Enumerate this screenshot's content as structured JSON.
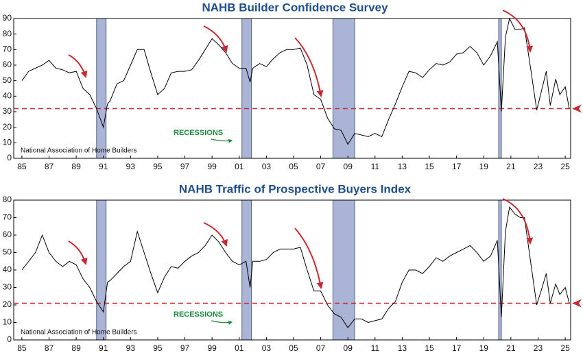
{
  "chart_data": [
    {
      "type": "line",
      "title": "NAHB Builder Confidence Survey",
      "source": "National Association of Home Builders",
      "annotation": "RECESSIONS",
      "color": "#000000",
      "reference_line": 32,
      "reference_color": "#c8282e",
      "recession_color": "#a9b4d6",
      "recessions": [
        [
          1990.5,
          1991.2
        ],
        [
          2001.2,
          2001.9
        ],
        [
          2007.9,
          2009.5
        ],
        [
          2020.1,
          2020.3
        ]
      ],
      "xlim": [
        1984.4,
        2025.4
      ],
      "ylim": [
        0,
        90
      ],
      "yticks": [
        0,
        10,
        20,
        30,
        40,
        50,
        60,
        70,
        80,
        90
      ],
      "xticks": [
        {
          "value": 1985,
          "label": "85"
        },
        {
          "value": 1987,
          "label": "87"
        },
        {
          "value": 1989,
          "label": "89"
        },
        {
          "value": 1991,
          "label": "91"
        },
        {
          "value": 1993,
          "label": "93"
        },
        {
          "value": 1995,
          "label": "95"
        },
        {
          "value": 1997,
          "label": "97"
        },
        {
          "value": 1999,
          "label": "99"
        },
        {
          "value": 2001,
          "label": "01"
        },
        {
          "value": 2003,
          "label": "03"
        },
        {
          "value": 2005,
          "label": "05"
        },
        {
          "value": 2007,
          "label": "07"
        },
        {
          "value": 2009,
          "label": "09"
        },
        {
          "value": 2011,
          "label": "11"
        },
        {
          "value": 2013,
          "label": "13"
        },
        {
          "value": 2015,
          "label": "15"
        },
        {
          "value": 2017,
          "label": "17"
        },
        {
          "value": 2019,
          "label": "19"
        },
        {
          "value": 2021,
          "label": "21"
        },
        {
          "value": 2023,
          "label": "23"
        },
        {
          "value": 2025,
          "label": "25"
        }
      ],
      "x": [
        1985,
        1985.5,
        1986,
        1986.5,
        1987,
        1987.5,
        1988,
        1988.5,
        1989,
        1989.5,
        1990,
        1990.5,
        1991,
        1991.3,
        1991.5,
        1992,
        1992.5,
        1993,
        1993.5,
        1994,
        1994.5,
        1995,
        1995.5,
        1996,
        1996.5,
        1997,
        1997.5,
        1998,
        1998.5,
        1999,
        1999.5,
        2000,
        2000.5,
        2001,
        2001.5,
        2001.8,
        2002,
        2002.5,
        2003,
        2003.5,
        2004,
        2004.5,
        2005,
        2005.5,
        2006,
        2006.5,
        2007,
        2007.5,
        2008,
        2008.5,
        2009,
        2009.5,
        2010,
        2010.5,
        2011,
        2011.5,
        2012,
        2012.5,
        2013,
        2013.5,
        2014,
        2014.5,
        2015,
        2015.5,
        2016,
        2016.5,
        2017,
        2017.5,
        2018,
        2018.5,
        2019,
        2019.5,
        2020,
        2020.3,
        2020.6,
        2020.9,
        2021.3,
        2021.7,
        2022,
        2022.5,
        2022.9,
        2023.3,
        2023.6,
        2023.9,
        2024.3,
        2024.6,
        2025,
        2025.3
      ],
      "values": [
        50,
        56,
        58,
        60,
        63,
        58,
        57,
        55,
        56,
        45,
        41,
        32,
        20,
        35,
        37,
        48,
        50,
        60,
        70,
        70,
        55,
        41,
        45,
        55,
        56,
        56,
        57,
        63,
        70,
        77,
        73,
        68,
        61,
        58,
        58,
        49,
        58,
        61,
        59,
        64,
        68,
        70,
        70,
        71,
        60,
        41,
        38,
        26,
        19,
        18,
        9,
        16,
        15,
        14,
        16,
        14,
        25,
        35,
        46,
        56,
        55,
        52,
        57,
        61,
        60,
        62,
        67,
        68,
        72,
        68,
        60,
        66,
        75,
        30,
        78,
        90,
        83,
        83,
        84,
        55,
        31,
        45,
        56,
        34,
        51,
        41,
        46,
        32
      ]
    },
    {
      "type": "line",
      "title": "NAHB Traffic of Prospective Buyers Index",
      "source": "National Association of Home Builders",
      "annotation": "RECESSIONS",
      "color": "#000000",
      "reference_line": 21,
      "reference_color": "#c8282e",
      "recession_color": "#a9b4d6",
      "recessions": [
        [
          1990.5,
          1991.2
        ],
        [
          2001.2,
          2001.9
        ],
        [
          2007.9,
          2009.5
        ],
        [
          2020.1,
          2020.3
        ]
      ],
      "xlim": [
        1984.4,
        2025.4
      ],
      "ylim": [
        0,
        80
      ],
      "yticks": [
        0,
        10,
        20,
        30,
        40,
        50,
        60,
        70,
        80
      ],
      "xticks": [
        {
          "value": 1985,
          "label": "85"
        },
        {
          "value": 1987,
          "label": "87"
        },
        {
          "value": 1989,
          "label": "89"
        },
        {
          "value": 1991,
          "label": "91"
        },
        {
          "value": 1993,
          "label": "93"
        },
        {
          "value": 1995,
          "label": "95"
        },
        {
          "value": 1997,
          "label": "97"
        },
        {
          "value": 1999,
          "label": "99"
        },
        {
          "value": 2001,
          "label": "01"
        },
        {
          "value": 2003,
          "label": "03"
        },
        {
          "value": 2005,
          "label": "05"
        },
        {
          "value": 2007,
          "label": "07"
        },
        {
          "value": 2009,
          "label": "09"
        },
        {
          "value": 2011,
          "label": "11"
        },
        {
          "value": 2013,
          "label": "13"
        },
        {
          "value": 2015,
          "label": "15"
        },
        {
          "value": 2017,
          "label": "17"
        },
        {
          "value": 2019,
          "label": "19"
        },
        {
          "value": 2021,
          "label": "21"
        },
        {
          "value": 2023,
          "label": "23"
        },
        {
          "value": 2025,
          "label": "25"
        }
      ],
      "x": [
        1985,
        1985.5,
        1986,
        1986.5,
        1987,
        1987.5,
        1988,
        1988.5,
        1989,
        1989.5,
        1990,
        1990.5,
        1991,
        1991.3,
        1991.5,
        1992,
        1992.5,
        1993,
        1993.5,
        1994,
        1994.5,
        1995,
        1995.5,
        1996,
        1996.5,
        1997,
        1997.5,
        1998,
        1998.5,
        1999,
        1999.5,
        2000,
        2000.5,
        2001,
        2001.5,
        2001.8,
        2002,
        2002.5,
        2003,
        2003.5,
        2004,
        2004.5,
        2005,
        2005.5,
        2006,
        2006.5,
        2007,
        2007.5,
        2008,
        2008.5,
        2009,
        2009.5,
        2010,
        2010.5,
        2011,
        2011.5,
        2012,
        2012.5,
        2013,
        2013.5,
        2014,
        2014.5,
        2015,
        2015.5,
        2016,
        2016.5,
        2017,
        2017.5,
        2018,
        2018.5,
        2019,
        2019.5,
        2020,
        2020.3,
        2020.6,
        2020.9,
        2021.3,
        2021.7,
        2022,
        2022.5,
        2022.9,
        2023.3,
        2023.6,
        2023.9,
        2024.3,
        2024.6,
        2025,
        2025.3
      ],
      "values": [
        40,
        45,
        50,
        60,
        50,
        45,
        42,
        45,
        43,
        35,
        30,
        22,
        16,
        33,
        34,
        38,
        42,
        45,
        62,
        50,
        38,
        27,
        36,
        42,
        41,
        45,
        48,
        50,
        54,
        60,
        56,
        50,
        45,
        43,
        45,
        30,
        45,
        45,
        46,
        50,
        52,
        52,
        52,
        53,
        40,
        28,
        28,
        20,
        15,
        13,
        7,
        12,
        12,
        10,
        11,
        12,
        18,
        22,
        33,
        40,
        40,
        38,
        42,
        47,
        45,
        48,
        50,
        52,
        54,
        50,
        45,
        48,
        57,
        13,
        62,
        76,
        72,
        70,
        70,
        42,
        20,
        30,
        38,
        21,
        32,
        26,
        30,
        21
      ]
    }
  ]
}
